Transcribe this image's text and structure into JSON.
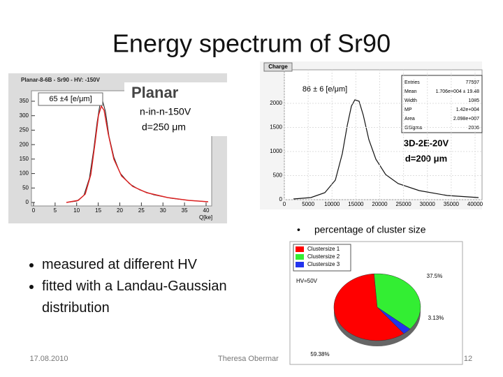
{
  "title": "Energy spectrum of Sr90",
  "left_plot": {
    "header": "Planar-8-6B - Sr90 - HV: -150V",
    "annotation": "65 ±4 [e/μm]",
    "overlay": {
      "title": "Planar",
      "lines": [
        "n-in-n-150V",
        "d=250 μm"
      ]
    },
    "xlabel": "Q[ke]",
    "xticks": [
      0,
      5,
      10,
      15,
      20,
      25,
      30,
      35,
      40
    ],
    "yticks": [
      0,
      50,
      100,
      150,
      200,
      250,
      300,
      350
    ]
  },
  "right_plot": {
    "header": "Charge",
    "annotation": "86 ± 6 [e/μm]",
    "stats": [
      [
        "Entries",
        "77597"
      ],
      [
        "Mean",
        "1.706e+004 ± 19.48"
      ],
      [
        "Width",
        "1085"
      ],
      [
        "MP",
        "1.42e+004"
      ],
      [
        "Area",
        "2.098e+007"
      ],
      [
        "GSigma",
        "2036"
      ]
    ],
    "xticks": [
      0,
      5000,
      10000,
      15000,
      20000,
      25000,
      30000,
      35000,
      40000
    ],
    "yticks": [
      0,
      500,
      1000,
      1500,
      2000
    ],
    "overlay": [
      "3D-2E-20V",
      "d=200 μm"
    ]
  },
  "pie_section": {
    "bullet": "percentage of cluster size",
    "hv": "HV=50V",
    "slices": [
      {
        "name": "Clustersize 1",
        "color": "#ff0000",
        "value": 59.38,
        "label": "59.38%"
      },
      {
        "name": "Clustersize 2",
        "color": "#33ee33",
        "value": 37.5,
        "label": "37.5%"
      },
      {
        "name": "Clustersize 3",
        "color": "#2233ee",
        "value": 3.13,
        "label": "3.13%"
      }
    ]
  },
  "bullets": [
    "measured at different HV",
    "fitted with a Landau-Gaussian distribution"
  ],
  "footer": {
    "date": "17.08.2010",
    "author": "Theresa Obermar",
    "page": "12"
  }
}
